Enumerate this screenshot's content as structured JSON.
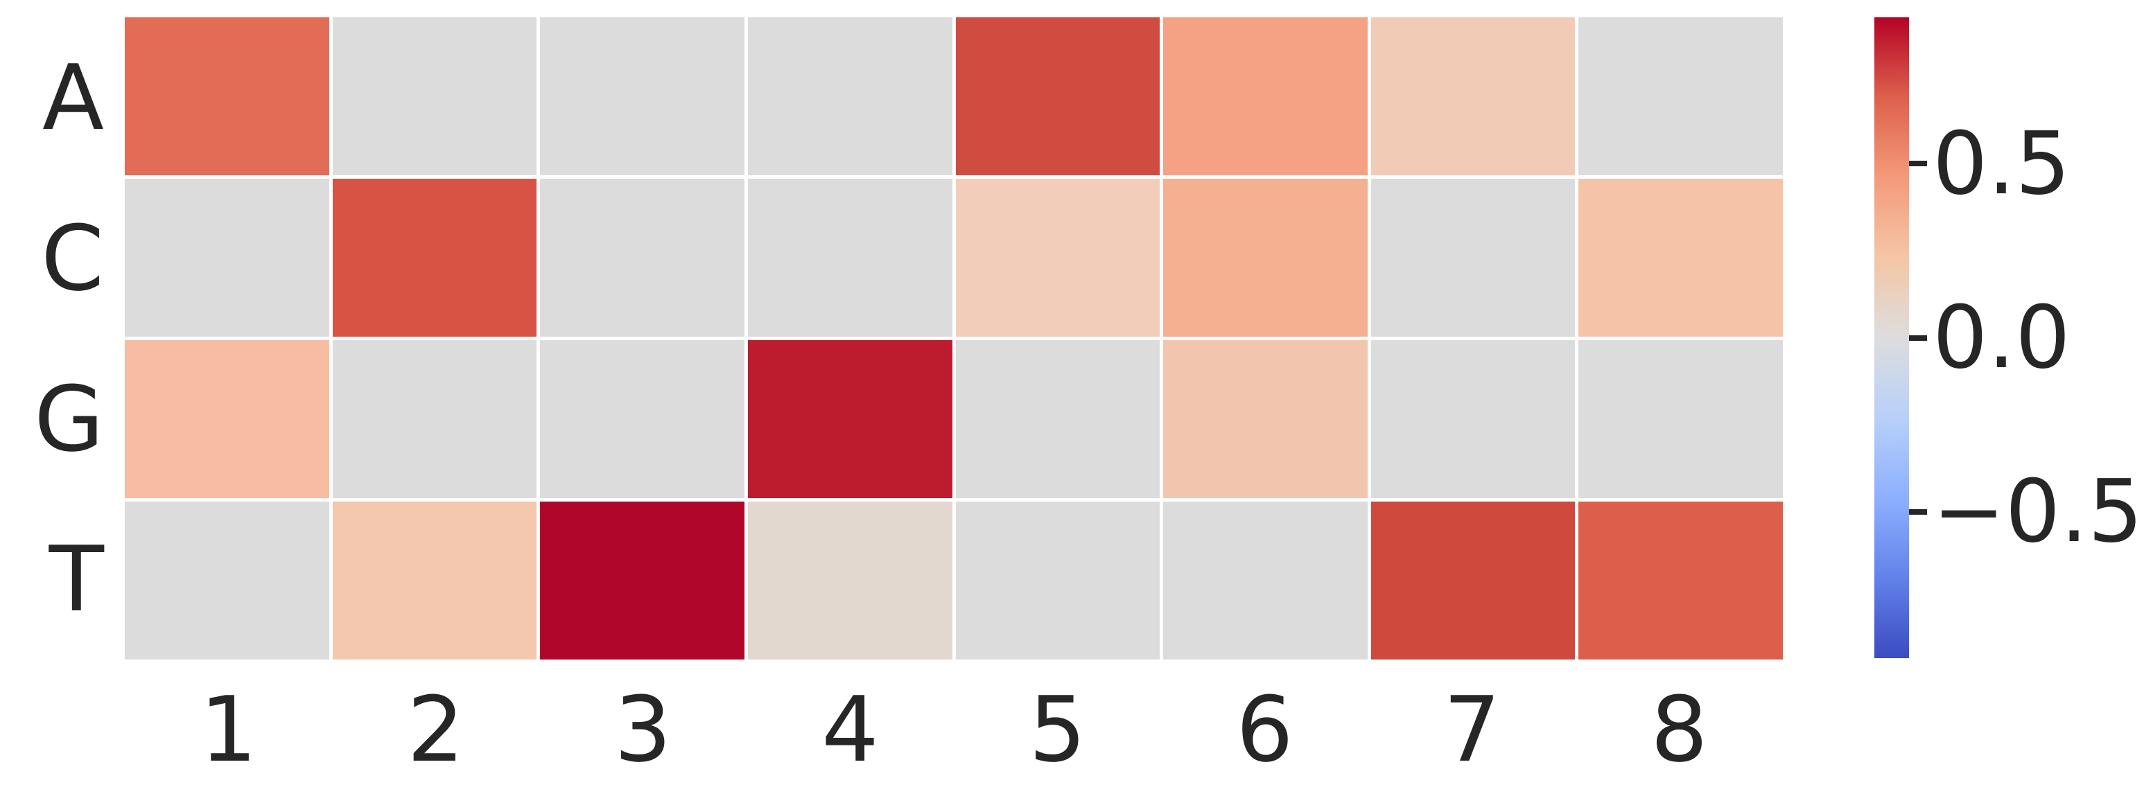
{
  "figure": {
    "background": "#ffffff",
    "text_color": "#262626",
    "grid_line_color": "#ffffff"
  },
  "chart_data": {
    "type": "heatmap",
    "colormap": "coolwarm",
    "rows": [
      "A",
      "C",
      "G",
      "T"
    ],
    "columns": [
      "1",
      "2",
      "3",
      "4",
      "5",
      "6",
      "7",
      "8"
    ],
    "values": [
      [
        0.64,
        0.0,
        0.0,
        0.0,
        0.74,
        0.44,
        0.21,
        0.0
      ],
      [
        0.0,
        0.72,
        0.0,
        0.0,
        0.2,
        0.35,
        0.0,
        0.24
      ],
      [
        0.28,
        0.0,
        0.0,
        0.86,
        0.0,
        0.23,
        0.0,
        0.0
      ],
      [
        0.0,
        0.22,
        0.92,
        0.07,
        0.0,
        0.0,
        0.75,
        0.69
      ]
    ],
    "cell_colors": [
      [
        "#e26c55",
        "#dcdcdc",
        "#dcdcdc",
        "#dcdcdc",
        "#d04c41",
        "#f5a183",
        "#f2cbb6",
        "#dcdcdc"
      ],
      [
        "#dcdcdc",
        "#d75445",
        "#dcdcdc",
        "#dcdcdc",
        "#f2ceba",
        "#f5b092",
        "#dcdcdc",
        "#f5c3a8"
      ],
      [
        "#f7bca1",
        "#dcdcdc",
        "#dcdcdc",
        "#bc1c2e",
        "#dcdcdc",
        "#f2c6ae",
        "#dcdcdc",
        "#dcdcdc"
      ],
      [
        "#dcdcdc",
        "#f3c8ae",
        "#b1062b",
        "#e3d8d0",
        "#dcdcdc",
        "#dcdcdc",
        "#ce4a3d",
        "#dd5f4b"
      ]
    ],
    "zero_color": "#dcdcdc",
    "colorbar": {
      "vmin": -0.92,
      "vmax": 0.92,
      "ticks": [
        0.5,
        0.0,
        -0.5
      ],
      "tick_labels": [
        "0.5",
        "0.0",
        "−0.5"
      ],
      "gradient_top_to_bottom": [
        "#b40426",
        "#de604d",
        "#f49a7b",
        "#f4c6a5",
        "#dddddd",
        "#b8d0f9",
        "#8db0fe",
        "#6282ea",
        "#3b4cc0"
      ]
    }
  }
}
